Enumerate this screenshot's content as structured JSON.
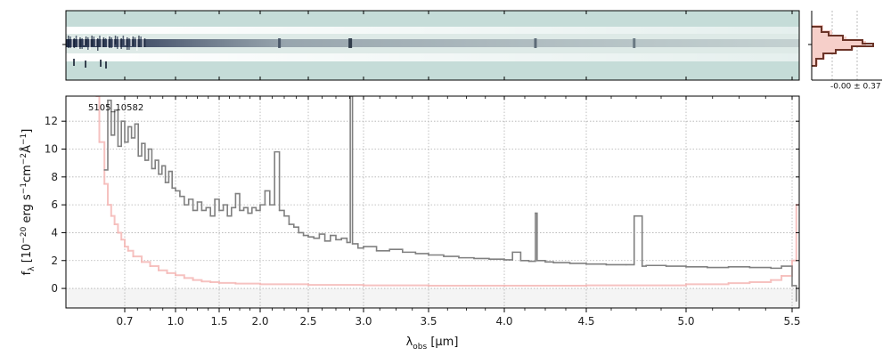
{
  "chart_data": {
    "type": "line",
    "object_label": "5105_10582",
    "xlabel": "λ_obs [μm]",
    "xlabel_parts": {
      "main": "λ",
      "sub": "obs",
      "units": " [μm]"
    },
    "ylabel": "f_λ [10^-20 erg s^-1 cm^-2 Å^-1]",
    "ylabel_parts": {
      "f": "f",
      "sub": "λ",
      "open": " [10",
      "exp1": "−20",
      "mid1": " erg s",
      "exp2": "−1",
      "mid2": "cm",
      "exp3": "−2",
      "mid3": "Å",
      "exp4": "−1",
      "close": "]"
    },
    "xticks": [
      "0.7",
      "1.0",
      "1.5",
      "2.0",
      "2.5",
      "3.0",
      "3.5",
      "4.0",
      "4.5",
      "5.0",
      "5.5"
    ],
    "xtick_values": [
      0.7,
      1.0,
      1.5,
      2.0,
      2.5,
      3.0,
      3.5,
      4.0,
      4.5,
      5.0,
      5.5
    ],
    "yticks": [
      "0",
      "2",
      "4",
      "6",
      "8",
      "10",
      "12"
    ],
    "ytick_values": [
      0,
      2,
      4,
      6,
      8,
      10,
      12
    ],
    "ylim": [
      -1.4,
      13.8
    ],
    "xlim": [
      0.5,
      5.55
    ],
    "grid": true,
    "inset_label": "-0.00 ± 0.37",
    "colors": {
      "flux": "#808080",
      "error": "#f5b7b5",
      "zero_band": "#e8e8e8",
      "spec2d_bg": "#c5dcd8",
      "inset_line": "#6b3428",
      "inset_fill": "#f6cfc9"
    },
    "series": [
      {
        "role": "flux",
        "x": [
          0.58,
          0.6,
          0.62,
          0.64,
          0.66,
          0.68,
          0.7,
          0.72,
          0.74,
          0.76,
          0.78,
          0.8,
          0.82,
          0.84,
          0.86,
          0.88,
          0.9,
          0.92,
          0.94,
          0.96,
          0.98,
          1.0,
          1.05,
          1.1,
          1.15,
          1.2,
          1.25,
          1.3,
          1.35,
          1.4,
          1.45,
          1.5,
          1.55,
          1.6,
          1.65,
          1.7,
          1.75,
          1.8,
          1.85,
          1.9,
          1.95,
          2.0,
          2.05,
          2.1,
          2.15,
          2.2,
          2.25,
          2.3,
          2.35,
          2.4,
          2.45,
          2.5,
          2.55,
          2.6,
          2.65,
          2.7,
          2.75,
          2.8,
          2.85,
          2.88,
          2.9,
          2.95,
          3.0,
          3.1,
          3.2,
          3.3,
          3.4,
          3.5,
          3.6,
          3.7,
          3.8,
          3.9,
          4.0,
          4.05,
          4.1,
          4.15,
          4.19,
          4.2,
          4.25,
          4.3,
          4.4,
          4.5,
          4.6,
          4.7,
          4.74,
          4.78,
          4.8,
          4.9,
          5.0,
          5.1,
          5.2,
          5.3,
          5.4,
          5.45,
          5.5,
          5.52
        ],
        "y": [
          8.5,
          13.5,
          11.0,
          12.8,
          10.2,
          12.0,
          10.5,
          11.6,
          10.8,
          11.8,
          9.5,
          10.4,
          9.2,
          10.0,
          8.6,
          9.2,
          8.2,
          8.8,
          7.6,
          8.4,
          7.2,
          7.0,
          6.6,
          6.0,
          6.4,
          5.6,
          6.2,
          5.6,
          5.8,
          5.2,
          6.4,
          5.6,
          6.0,
          5.2,
          5.8,
          6.8,
          5.6,
          5.8,
          5.4,
          5.8,
          5.6,
          6.0,
          7.0,
          6.0,
          9.8,
          5.6,
          5.2,
          4.6,
          4.4,
          4.0,
          3.8,
          3.7,
          3.6,
          3.9,
          3.4,
          3.8,
          3.5,
          3.6,
          3.3,
          13.8,
          3.2,
          2.9,
          3.0,
          2.7,
          2.8,
          2.6,
          2.5,
          2.4,
          2.3,
          2.2,
          2.15,
          2.1,
          2.05,
          2.6,
          2.0,
          1.95,
          5.4,
          2.0,
          1.9,
          1.85,
          1.8,
          1.75,
          1.7,
          1.7,
          5.2,
          1.6,
          1.65,
          1.6,
          1.55,
          1.5,
          1.55,
          1.5,
          1.45,
          1.6,
          0.2,
          -0.9
        ]
      },
      {
        "role": "error",
        "x": [
          0.53,
          0.55,
          0.58,
          0.6,
          0.62,
          0.64,
          0.66,
          0.68,
          0.7,
          0.72,
          0.75,
          0.8,
          0.85,
          0.9,
          0.95,
          1.0,
          1.1,
          1.2,
          1.3,
          1.4,
          1.5,
          1.7,
          2.0,
          2.5,
          3.0,
          3.5,
          4.0,
          4.5,
          5.0,
          5.2,
          5.3,
          5.4,
          5.45,
          5.5,
          5.52,
          5.54
        ],
        "y": [
          13.8,
          10.5,
          7.5,
          6.0,
          5.2,
          4.6,
          4.0,
          3.5,
          3.0,
          2.7,
          2.3,
          1.9,
          1.6,
          1.3,
          1.1,
          0.95,
          0.75,
          0.6,
          0.5,
          0.45,
          0.4,
          0.35,
          0.3,
          0.25,
          0.22,
          0.2,
          0.2,
          0.22,
          0.3,
          0.38,
          0.45,
          0.6,
          0.9,
          2.0,
          6.0,
          13.8
        ]
      }
    ]
  }
}
